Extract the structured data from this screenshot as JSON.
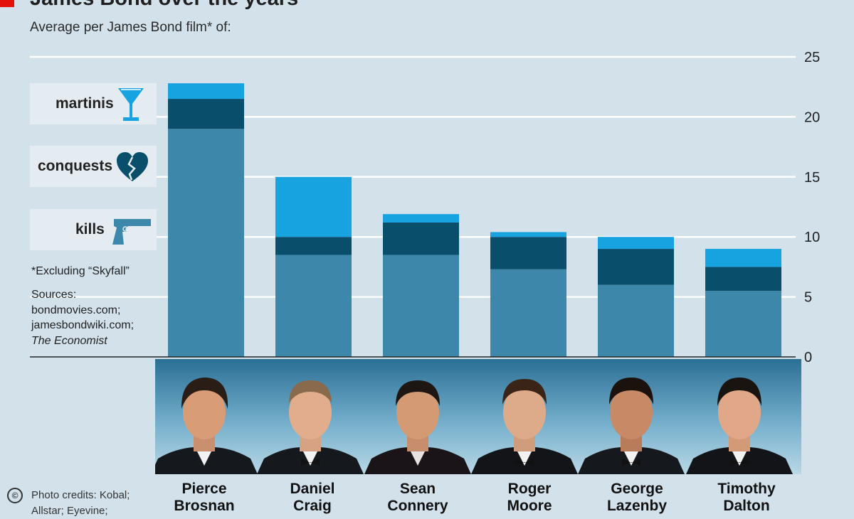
{
  "header": {
    "title": "James Bond over the years",
    "subtitle": "Average per James Bond film* of:"
  },
  "legend": [
    {
      "label": "martinis",
      "icon": "martini-glass-icon",
      "color": "#16a3e0"
    },
    {
      "label": "conquests",
      "icon": "broken-heart-icon",
      "color": "#094e6a"
    },
    {
      "label": "kills",
      "icon": "pistol-icon",
      "color": "#3d88aa"
    }
  ],
  "notes": {
    "footnote": "*Excluding “Skyfall”",
    "sources_label": "Sources:",
    "sources_1": "bondmovies.com;",
    "sources_2": "jamesbondwiki.com;",
    "sources_3": "The Economist",
    "credits_1": "Photo credits: Kobal;",
    "credits_2": "Allstar; Eyevine;",
    "copyright": "©"
  },
  "chart_data": {
    "type": "bar",
    "stacked": true,
    "categories": [
      "Pierce Brosnan",
      "Daniel Craig",
      "Sean Connery",
      "Roger Moore",
      "George Lazenby",
      "Timothy Dalton"
    ],
    "series": [
      {
        "name": "kills",
        "color": "#3d88aa",
        "values": [
          19.0,
          8.5,
          8.5,
          7.3,
          6.0,
          5.5
        ]
      },
      {
        "name": "conquests",
        "color": "#094e6a",
        "values": [
          2.5,
          1.5,
          2.7,
          2.7,
          3.0,
          2.0
        ]
      },
      {
        "name": "martinis",
        "color": "#16a3e0",
        "values": [
          1.3,
          5.0,
          0.7,
          0.4,
          1.0,
          1.5
        ]
      }
    ],
    "yticks": [
      0,
      5,
      10,
      15,
      20,
      25
    ],
    "ylim": [
      0,
      25
    ],
    "grid": true,
    "axis_side": "right",
    "legend_placement": "left"
  },
  "actors": [
    {
      "first": "Pierce",
      "last": "Brosnan"
    },
    {
      "first": "Daniel",
      "last": "Craig"
    },
    {
      "first": "Sean",
      "last": "Connery"
    },
    {
      "first": "Roger",
      "last": "Moore"
    },
    {
      "first": "George",
      "last": "Lazenby"
    },
    {
      "first": "Timothy",
      "last": "Dalton"
    }
  ]
}
